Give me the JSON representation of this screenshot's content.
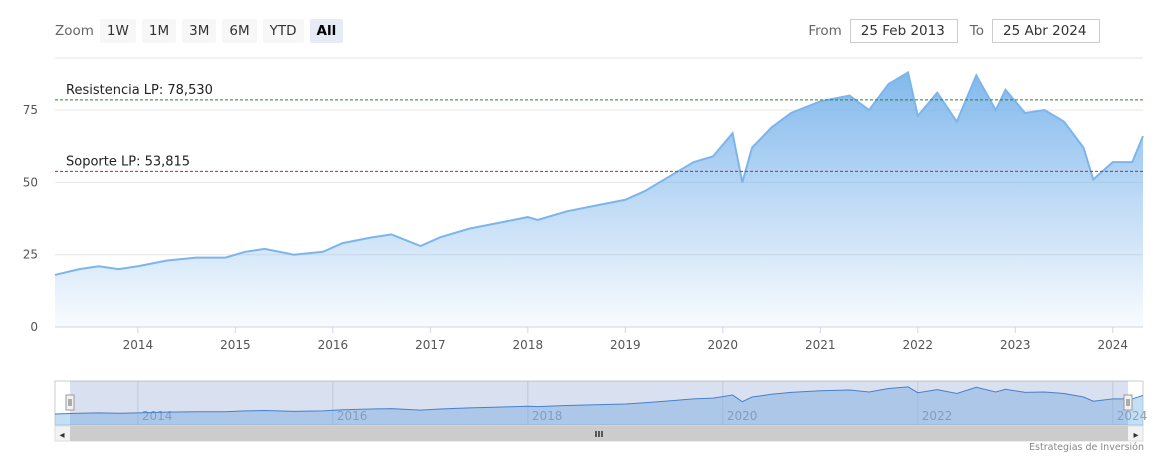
{
  "toolbar": {
    "zoom_label": "Zoom",
    "buttons": [
      "1W",
      "1M",
      "3M",
      "6M",
      "YTD",
      "All"
    ],
    "active": "All",
    "from_label": "From",
    "from_value": "25 Feb 2013",
    "to_label": "To",
    "to_value": "25 Abr 2024"
  },
  "colors": {
    "series": "#7cb5ec",
    "resistance": "#2e7d32",
    "support": "#c62828",
    "grid": "#e6e6e6",
    "navigator_mask": "#6685c2"
  },
  "chart_data": {
    "type": "area",
    "x": [
      2013.15,
      2013.4,
      2013.6,
      2013.8,
      2014.0,
      2014.3,
      2014.6,
      2014.9,
      2015.1,
      2015.3,
      2015.6,
      2015.9,
      2016.1,
      2016.4,
      2016.6,
      2016.9,
      2017.1,
      2017.4,
      2017.7,
      2018.0,
      2018.1,
      2018.4,
      2018.7,
      2019.0,
      2019.2,
      2019.5,
      2019.7,
      2019.9,
      2020.1,
      2020.2,
      2020.3,
      2020.5,
      2020.7,
      2021.0,
      2021.3,
      2021.5,
      2021.7,
      2021.9,
      2022.0,
      2022.2,
      2022.4,
      2022.6,
      2022.8,
      2022.9,
      2023.1,
      2023.3,
      2023.5,
      2023.7,
      2023.8,
      2024.0,
      2024.2,
      2024.31
    ],
    "values": [
      18,
      20,
      21,
      20,
      21,
      23,
      24,
      24,
      26,
      27,
      25,
      26,
      29,
      31,
      32,
      28,
      31,
      34,
      36,
      38,
      37,
      40,
      42,
      44,
      47,
      53,
      57,
      59,
      67,
      50,
      62,
      69,
      74,
      78,
      80,
      75,
      84,
      88,
      73,
      81,
      71,
      87,
      75,
      82,
      74,
      75,
      71,
      62,
      51,
      57,
      57,
      66
    ],
    "y_ticks": [
      0,
      25,
      50,
      75
    ],
    "ylim": [
      0,
      93
    ],
    "x_ticks": [
      "2014",
      "2015",
      "2016",
      "2017",
      "2018",
      "2019",
      "2020",
      "2021",
      "2022",
      "2023",
      "2024"
    ],
    "xlim": [
      2013.15,
      2024.31
    ],
    "grid": true,
    "annotations": [
      {
        "label": "Resistencia LP: 78,530",
        "value": 78.53
      },
      {
        "label": "Soporte LP: 53,815",
        "value": 53.815
      }
    ],
    "navigator_ticks": [
      "2014",
      "2016",
      "2018",
      "2020",
      "2022",
      "2024"
    ]
  },
  "scrollbar": {
    "grip": "III",
    "left_arrow": "◂",
    "right_arrow": "▸"
  },
  "credits": "Estrategias de Inversión"
}
